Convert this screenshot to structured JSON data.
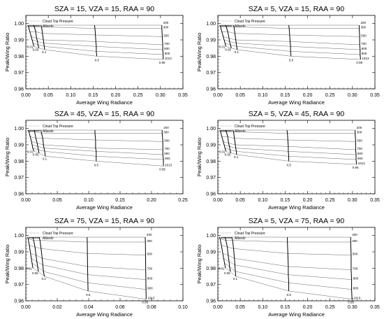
{
  "chart_data": [
    {
      "type": "line",
      "title": "SZA = 15, VZA = 15, RAA = 90",
      "xlabel": "Average Wing Radiance",
      "ylabel": "Peak/Wing Ratio",
      "xlim": [
        0.0,
        0.35
      ],
      "ylim": [
        0.96,
        1.005
      ],
      "xticks": [
        "0.00",
        "0.05",
        "0.10",
        "0.15",
        "0.20",
        "0.25",
        "0.30",
        "0.35"
      ],
      "yticks": [
        "0.96",
        "0.97",
        "0.98",
        "0.99",
        "1.00"
      ],
      "grid": false,
      "legend": {
        "position": "top-left",
        "entries": [
          "Cloud Top Pressure",
          "Albedo"
        ]
      },
      "pressure_labels": [
        "200",
        "300",
        "500",
        "700",
        "800",
        "900",
        "1013"
      ],
      "albedo_labels": [
        "0.01",
        "0.05",
        "0.1",
        "0.5",
        "0.95"
      ],
      "albedo": [
        0.01,
        0.05,
        0.1,
        0.5,
        0.95
      ],
      "pressure": [
        200,
        300,
        500,
        700,
        800,
        900,
        1013
      ],
      "x": [
        [
          0.004,
          0.006,
          0.009,
          0.012,
          0.014,
          0.016,
          0.018
        ],
        [
          0.017,
          0.019,
          0.022,
          0.024,
          0.026,
          0.027,
          0.029
        ],
        [
          0.033,
          0.035,
          0.037,
          0.039,
          0.04,
          0.041,
          0.042
        ],
        [
          0.153,
          0.154,
          0.155,
          0.156,
          0.157,
          0.157,
          0.158
        ],
        [
          0.303,
          0.303,
          0.304,
          0.305,
          0.305,
          0.306,
          0.306
        ]
      ],
      "y": [
        [
          0.999,
          0.998,
          0.995,
          0.992,
          0.99,
          0.988,
          0.986
        ],
        [
          0.999,
          0.998,
          0.995,
          0.991,
          0.989,
          0.987,
          0.985
        ],
        [
          0.999,
          0.998,
          0.994,
          0.99,
          0.988,
          0.986,
          0.984
        ],
        [
          0.999,
          0.997,
          0.993,
          0.989,
          0.986,
          0.983,
          0.98
        ],
        [
          0.999,
          0.997,
          0.992,
          0.987,
          0.984,
          0.981,
          0.978
        ]
      ]
    },
    {
      "type": "line",
      "title": "SZA = 5, VZA = 15, RAA = 90",
      "xlabel": "Average Wing Radiance",
      "ylabel": "Peak/Wing Ratio",
      "xlim": [
        0.0,
        0.35
      ],
      "ylim": [
        0.96,
        1.005
      ],
      "xticks": [
        "0.00",
        "0.05",
        "0.10",
        "0.15",
        "0.20",
        "0.25",
        "0.30",
        "0.35"
      ],
      "yticks": [
        "0.96",
        "0.97",
        "0.98",
        "0.99",
        "1.00"
      ],
      "grid": false,
      "legend": {
        "position": "top-left",
        "entries": [
          "Cloud Top Pressure",
          "Albedo"
        ]
      },
      "pressure_labels": [
        "200",
        "300",
        "500",
        "700",
        "800",
        "900",
        "1013"
      ],
      "albedo_labels": [
        "0.01",
        "0.05",
        "0.1",
        "0.5",
        "0.95"
      ],
      "albedo": [
        0.01,
        0.05,
        0.1,
        0.5,
        0.95
      ],
      "pressure": [
        200,
        300,
        500,
        700,
        800,
        900,
        1013
      ],
      "x": [
        [
          0.004,
          0.006,
          0.009,
          0.012,
          0.014,
          0.016,
          0.018
        ],
        [
          0.017,
          0.019,
          0.022,
          0.025,
          0.026,
          0.028,
          0.03
        ],
        [
          0.034,
          0.036,
          0.038,
          0.04,
          0.041,
          0.042,
          0.043
        ],
        [
          0.158,
          0.159,
          0.16,
          0.161,
          0.162,
          0.162,
          0.163
        ],
        [
          0.315,
          0.315,
          0.316,
          0.316,
          0.317,
          0.317,
          0.318
        ]
      ],
      "y": [
        [
          0.999,
          0.998,
          0.995,
          0.992,
          0.99,
          0.988,
          0.986
        ],
        [
          0.999,
          0.998,
          0.995,
          0.991,
          0.989,
          0.987,
          0.985
        ],
        [
          0.999,
          0.998,
          0.994,
          0.99,
          0.988,
          0.986,
          0.984
        ],
        [
          0.999,
          0.997,
          0.993,
          0.989,
          0.986,
          0.983,
          0.98
        ],
        [
          0.999,
          0.997,
          0.992,
          0.987,
          0.984,
          0.981,
          0.978
        ]
      ]
    },
    {
      "type": "line",
      "title": "SZA = 45, VZA = 15, RAA = 90",
      "xlabel": "Average Wing Radiance",
      "ylabel": "Peak/Wing Ratio",
      "xlim": [
        0.0,
        0.25
      ],
      "ylim": [
        0.96,
        1.005
      ],
      "xticks": [
        "0.00",
        "0.05",
        "0.10",
        "0.15",
        "0.20",
        "0.25"
      ],
      "yticks": [
        "0.96",
        "0.97",
        "0.98",
        "0.99",
        "1.00"
      ],
      "grid": false,
      "legend": {
        "position": "top-left",
        "entries": [
          "Cloud Top Pressure",
          "Albedo"
        ]
      },
      "pressure_labels": [
        "200",
        "300",
        "500",
        "700",
        "800",
        "900",
        "1013"
      ],
      "albedo_labels": [
        "0.01",
        "0.05",
        "0.1",
        "0.5",
        "0.95"
      ],
      "albedo": [
        0.01,
        0.05,
        0.1,
        0.5,
        0.95
      ],
      "pressure": [
        200,
        300,
        500,
        700,
        800,
        900,
        1013
      ],
      "x": [
        [
          0.003,
          0.005,
          0.007,
          0.009,
          0.01,
          0.011,
          0.013
        ],
        [
          0.013,
          0.014,
          0.016,
          0.018,
          0.019,
          0.02,
          0.021
        ],
        [
          0.024,
          0.025,
          0.027,
          0.028,
          0.029,
          0.03,
          0.031
        ],
        [
          0.11,
          0.11,
          0.111,
          0.111,
          0.112,
          0.112,
          0.112
        ],
        [
          0.217,
          0.217,
          0.218,
          0.218,
          0.218,
          0.219,
          0.219
        ]
      ],
      "y": [
        [
          0.999,
          0.998,
          0.995,
          0.992,
          0.99,
          0.988,
          0.986
        ],
        [
          0.999,
          0.998,
          0.994,
          0.991,
          0.989,
          0.987,
          0.985
        ],
        [
          0.999,
          0.997,
          0.994,
          0.99,
          0.988,
          0.986,
          0.983
        ],
        [
          0.999,
          0.997,
          0.993,
          0.988,
          0.986,
          0.983,
          0.98
        ],
        [
          0.999,
          0.997,
          0.992,
          0.987,
          0.984,
          0.981,
          0.977
        ]
      ]
    },
    {
      "type": "line",
      "title": "SZA = 5, VZA = 45, RAA = 90",
      "xlabel": "Average Wing Radiance",
      "ylabel": "Peak/Wing Ratio",
      "xlim": [
        0.0,
        0.35
      ],
      "ylim": [
        0.96,
        1.005
      ],
      "xticks": [
        "0.00",
        "0.05",
        "0.10",
        "0.15",
        "0.20",
        "0.25",
        "0.30",
        "0.35"
      ],
      "yticks": [
        "0.96",
        "0.97",
        "0.98",
        "0.99",
        "1.00"
      ],
      "grid": false,
      "legend": {
        "position": "top-left",
        "entries": [
          "Cloud Top Pressure",
          "Albedo"
        ]
      },
      "pressure_labels": [
        "200",
        "300",
        "500",
        "700",
        "800",
        "900",
        "1013"
      ],
      "albedo_labels": [
        "0.01",
        "0.05",
        "0.1",
        "0.5",
        "0.95"
      ],
      "albedo": [
        0.01,
        0.05,
        0.1,
        0.5,
        0.95
      ],
      "pressure": [
        200,
        300,
        500,
        700,
        800,
        900,
        1013
      ],
      "x": [
        [
          0.004,
          0.006,
          0.009,
          0.012,
          0.014,
          0.016,
          0.018
        ],
        [
          0.017,
          0.019,
          0.022,
          0.024,
          0.026,
          0.027,
          0.029
        ],
        [
          0.033,
          0.035,
          0.037,
          0.039,
          0.04,
          0.041,
          0.042
        ],
        [
          0.154,
          0.155,
          0.156,
          0.157,
          0.157,
          0.158,
          0.158
        ],
        [
          0.306,
          0.306,
          0.307,
          0.307,
          0.308,
          0.308,
          0.309
        ]
      ],
      "y": [
        [
          0.999,
          0.998,
          0.995,
          0.992,
          0.99,
          0.988,
          0.986
        ],
        [
          0.999,
          0.998,
          0.995,
          0.991,
          0.989,
          0.987,
          0.985
        ],
        [
          0.999,
          0.998,
          0.994,
          0.99,
          0.988,
          0.986,
          0.984
        ],
        [
          0.999,
          0.997,
          0.993,
          0.989,
          0.986,
          0.983,
          0.98
        ],
        [
          0.999,
          0.997,
          0.992,
          0.987,
          0.984,
          0.981,
          0.978
        ]
      ]
    },
    {
      "type": "line",
      "title": "SZA = 75, VZA = 15, RAA = 90",
      "xlabel": "Average Wing Radiance",
      "ylabel": "Peak/Wing Ratio",
      "xlim": [
        0.0,
        0.1
      ],
      "ylim": [
        0.96,
        1.005
      ],
      "xticks": [
        "0.00",
        "0.02",
        "0.04",
        "0.06",
        "0.08",
        "0.10"
      ],
      "yticks": [
        "0.96",
        "0.97",
        "0.98",
        "0.99",
        "1.00"
      ],
      "grid": false,
      "legend": {
        "position": "top-left",
        "entries": [
          "Cloud Top Pressure",
          "Albedo"
        ]
      },
      "pressure_labels": [
        "200",
        "300",
        "500",
        "700",
        "800",
        "900",
        "1013"
      ],
      "albedo_labels": [
        "0.01",
        "0.05",
        "0.1",
        "0.5",
        "0.95"
      ],
      "albedo": [
        0.01,
        0.05,
        0.1,
        0.5,
        0.95
      ],
      "pressure": [
        200,
        300,
        500,
        700,
        800,
        900,
        1013
      ],
      "x": [
        [
          0.001,
          0.0015,
          0.0022,
          0.003,
          0.0035,
          0.004,
          0.0045
        ],
        [
          0.0045,
          0.005,
          0.0058,
          0.0065,
          0.007,
          0.0075,
          0.008
        ],
        [
          0.0085,
          0.009,
          0.0097,
          0.0104,
          0.0108,
          0.0112,
          0.0118
        ],
        [
          0.039,
          0.0391,
          0.0392,
          0.0393,
          0.0394,
          0.0395,
          0.0396
        ],
        [
          0.076,
          0.0761,
          0.0762,
          0.0763,
          0.0764,
          0.0765,
          0.0766
        ]
      ],
      "y": [
        [
          0.999,
          0.998,
          0.994,
          0.989,
          0.986,
          0.983,
          0.98
        ],
        [
          0.999,
          0.997,
          0.993,
          0.988,
          0.984,
          0.981,
          0.978
        ],
        [
          0.999,
          0.997,
          0.992,
          0.986,
          0.982,
          0.978,
          0.975
        ],
        [
          0.999,
          0.996,
          0.989,
          0.981,
          0.976,
          0.971,
          0.966
        ],
        [
          0.999,
          0.996,
          0.988,
          0.979,
          0.973,
          0.967,
          0.961
        ]
      ]
    },
    {
      "type": "line",
      "title": "SZA = 5, VZA = 75, RAA = 90",
      "xlabel": "Average Wing Radiance",
      "ylabel": "Peak/Wing Ratio",
      "xlim": [
        0.0,
        0.35
      ],
      "ylim": [
        0.96,
        1.005
      ],
      "xticks": [
        "0.00",
        "0.05",
        "0.10",
        "0.15",
        "0.20",
        "0.25",
        "0.30",
        "0.35"
      ],
      "yticks": [
        "0.96",
        "0.97",
        "0.98",
        "0.99",
        "1.00"
      ],
      "grid": false,
      "legend": {
        "position": "top-left",
        "entries": [
          "Cloud Top Pressure",
          "Albedo"
        ]
      },
      "pressure_labels": [
        "200",
        "300",
        "500",
        "700",
        "800",
        "900",
        "1013"
      ],
      "albedo_labels": [
        "0.01",
        "0.05",
        "0.1",
        "0.5",
        "0.95"
      ],
      "albedo": [
        0.01,
        0.05,
        0.1,
        0.5,
        0.95
      ],
      "pressure": [
        200,
        300,
        500,
        700,
        800,
        900,
        1013
      ],
      "x": [
        [
          0.003,
          0.005,
          0.008,
          0.011,
          0.013,
          0.015,
          0.017
        ],
        [
          0.016,
          0.018,
          0.021,
          0.023,
          0.025,
          0.026,
          0.028
        ],
        [
          0.031,
          0.033,
          0.035,
          0.037,
          0.038,
          0.039,
          0.04
        ],
        [
          0.155,
          0.155,
          0.156,
          0.157,
          0.157,
          0.158,
          0.158
        ],
        [
          0.296,
          0.296,
          0.297,
          0.297,
          0.298,
          0.298,
          0.299
        ]
      ],
      "y": [
        [
          0.999,
          0.998,
          0.994,
          0.989,
          0.986,
          0.983,
          0.98
        ],
        [
          0.999,
          0.997,
          0.993,
          0.988,
          0.984,
          0.981,
          0.978
        ],
        [
          0.999,
          0.997,
          0.992,
          0.986,
          0.982,
          0.978,
          0.975
        ],
        [
          0.999,
          0.996,
          0.989,
          0.981,
          0.976,
          0.971,
          0.966
        ],
        [
          0.999,
          0.996,
          0.988,
          0.979,
          0.973,
          0.967,
          0.961
        ]
      ]
    }
  ]
}
